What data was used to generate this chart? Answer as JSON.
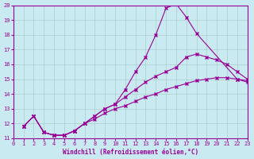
{
  "xlabel": "Windchill (Refroidissement éolien,°C)",
  "xlim": [
    0,
    23
  ],
  "ylim": [
    11,
    20
  ],
  "xticks": [
    0,
    1,
    2,
    3,
    4,
    5,
    6,
    7,
    8,
    9,
    10,
    11,
    12,
    13,
    14,
    15,
    16,
    17,
    18,
    19,
    20,
    21,
    22,
    23
  ],
  "yticks": [
    11,
    12,
    13,
    14,
    15,
    16,
    17,
    18,
    19,
    20
  ],
  "line_color": "#990099",
  "bg_color": "#c8eaf0",
  "grid_color": "#aacccc",
  "curve1_x": [
    1,
    2,
    3,
    4,
    5,
    6,
    7,
    8,
    9,
    10,
    11,
    12,
    13,
    14,
    15,
    16,
    17,
    18,
    22,
    23
  ],
  "curve1_y": [
    11.8,
    12.5,
    11.4,
    11.2,
    11.2,
    11.5,
    12.0,
    12.5,
    13.0,
    13.3,
    14.3,
    15.5,
    16.5,
    18.0,
    19.8,
    20.1,
    19.2,
    18.1,
    15.0,
    14.8
  ],
  "curve2_x": [
    1,
    2,
    3,
    4,
    5,
    6,
    7,
    8,
    9,
    10,
    11,
    12,
    13,
    14,
    15,
    16,
    17,
    18,
    19,
    20,
    21,
    22,
    23
  ],
  "curve2_y": [
    11.8,
    12.5,
    11.4,
    11.2,
    11.2,
    11.5,
    12.0,
    12.5,
    13.0,
    13.3,
    13.8,
    14.3,
    14.8,
    15.2,
    15.5,
    15.8,
    16.5,
    16.7,
    16.5,
    16.3,
    16.0,
    15.5,
    15.0
  ],
  "curve3_x": [
    1,
    2,
    3,
    4,
    5,
    6,
    7,
    8,
    9,
    10,
    11,
    12,
    13,
    14,
    15,
    16,
    17,
    18,
    19,
    20,
    21,
    22,
    23
  ],
  "curve3_y": [
    11.8,
    12.5,
    11.4,
    11.2,
    11.2,
    11.5,
    12.0,
    12.3,
    12.7,
    13.0,
    13.2,
    13.5,
    13.8,
    14.0,
    14.3,
    14.5,
    14.7,
    14.9,
    15.0,
    15.1,
    15.1,
    15.0,
    14.9
  ]
}
